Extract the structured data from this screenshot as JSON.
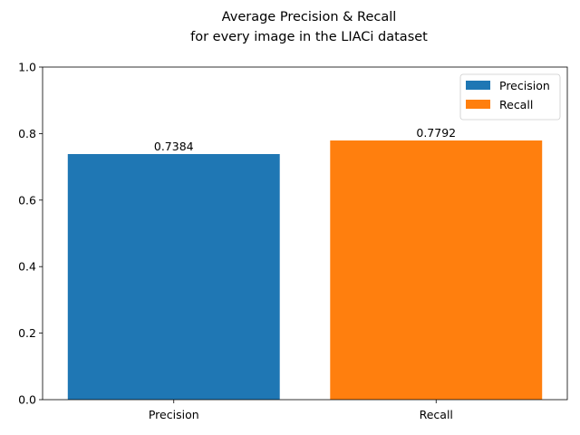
{
  "chart_data": {
    "type": "bar",
    "title": "Average Precision & Recall\nfor every image in the LIACi dataset",
    "title_lines": [
      "Average Precision & Recall",
      "for every image in the LIACi dataset"
    ],
    "categories": [
      "Precision",
      "Recall"
    ],
    "values": [
      0.7384,
      0.7792
    ],
    "data_labels": [
      "0.7384",
      "0.7792"
    ],
    "colors": [
      "#1f77b4",
      "#ff7f0e"
    ],
    "xlabel": "",
    "ylabel": "",
    "ylim": [
      0,
      1.0
    ],
    "yticks": [
      "0.0",
      "0.2",
      "0.4",
      "0.6",
      "0.8",
      "1.0"
    ],
    "grid": false,
    "legend": {
      "placement": "top-right",
      "entries": [
        {
          "name": "Precision",
          "color": "#1f77b4"
        },
        {
          "name": "Recall",
          "color": "#ff7f0e"
        }
      ]
    }
  }
}
